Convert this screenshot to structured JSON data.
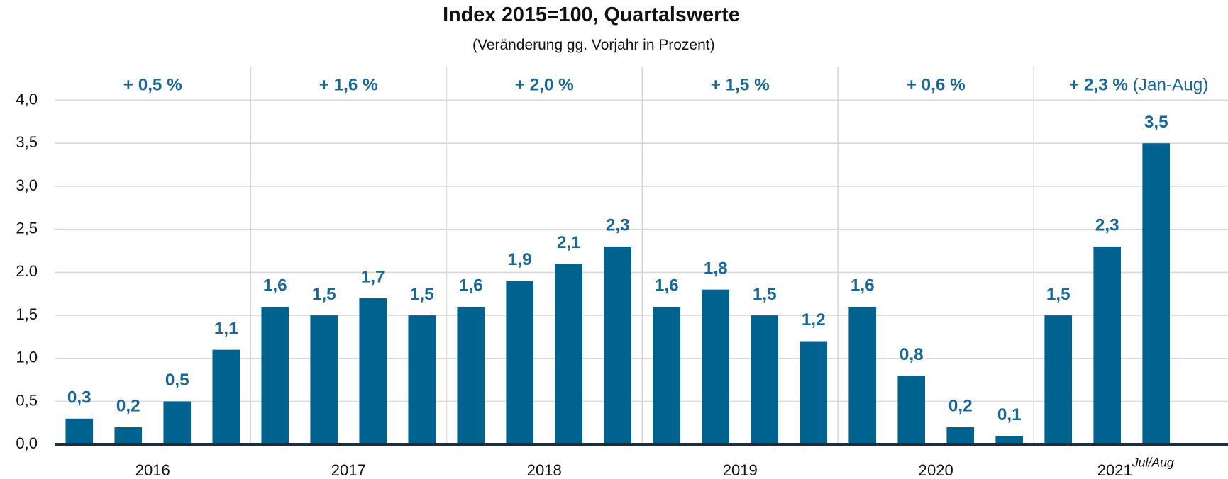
{
  "chart_data": {
    "type": "bar",
    "title": "Index 2015=100, Quartalswerte",
    "subtitle": "(Veränderung gg. Vorjahr in Prozent)",
    "categories": [
      null,
      null,
      null,
      null,
      null,
      null,
      null,
      null,
      null,
      null,
      null,
      null,
      null,
      null,
      null,
      null,
      null,
      null,
      null,
      null,
      null,
      null,
      null
    ],
    "values": [
      0.3,
      0.2,
      0.5,
      1.1,
      1.6,
      1.5,
      1.7,
      1.5,
      1.6,
      1.9,
      2.1,
      2.3,
      1.6,
      1.8,
      1.5,
      1.2,
      1.6,
      0.8,
      0.2,
      0.1,
      1.5,
      2.3,
      3.5
    ],
    "value_labels": [
      "0,3",
      "0,2",
      "0,5",
      "1,1",
      "1,6",
      "1,5",
      "1,7",
      "1,5",
      "1,6",
      "1,9",
      "2,1",
      "2,3",
      "1,6",
      "1,8",
      "1,5",
      "1,2",
      "1,6",
      "0,8",
      "0,2",
      "0,1",
      "1,5",
      "2,3",
      "3,5"
    ],
    "color": "#00628f",
    "groups": [
      {
        "label": "2016",
        "change": "+ 0,5 %"
      },
      {
        "label": "2017",
        "change": "+ 1,6 %"
      },
      {
        "label": "2018",
        "change": "+ 2,0 %"
      },
      {
        "label": "2019",
        "change": "+ 1,5 %"
      },
      {
        "label": "2020",
        "change": "+ 0,6 %"
      },
      {
        "label": "2021",
        "note": "Jul/Aug",
        "change": "+ 2,3 %",
        "change_note": "(Jan-Aug)"
      }
    ],
    "ylim": [
      0,
      4
    ],
    "yticks": [
      {
        "value": 0,
        "label": "0,0"
      },
      {
        "value": 0.5,
        "label": "0,5"
      },
      {
        "value": 1,
        "label": "1,0"
      },
      {
        "value": 1.5,
        "label": "1,5"
      },
      {
        "value": 2,
        "label": "2.0"
      },
      {
        "value": 2.5,
        "label": "2,5"
      },
      {
        "value": 3,
        "label": "3,0"
      },
      {
        "value": 3.5,
        "label": "3,5"
      },
      {
        "value": 4,
        "label": "4,0"
      }
    ],
    "grid": true
  }
}
